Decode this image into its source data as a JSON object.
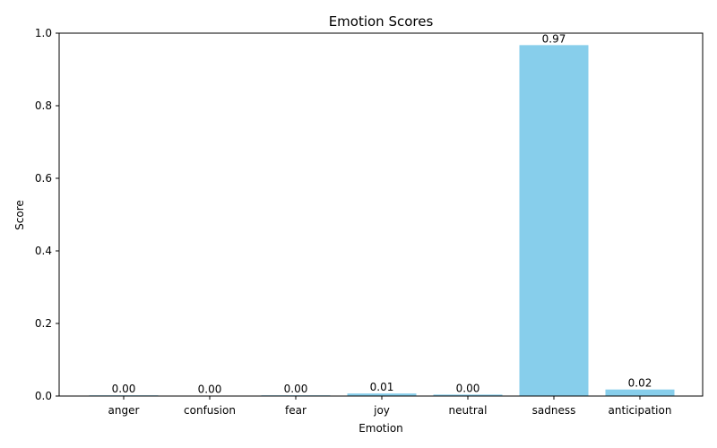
{
  "chart_data": {
    "type": "bar",
    "title": "Emotion Scores",
    "xlabel": "Emotion",
    "ylabel": "Score",
    "categories": [
      "anger",
      "confusion",
      "fear",
      "joy",
      "neutral",
      "sadness",
      "anticipation"
    ],
    "values": [
      0.002,
      0.001,
      0.002,
      0.007,
      0.004,
      0.967,
      0.018
    ],
    "value_labels": [
      "0.00",
      "0.00",
      "0.00",
      "0.01",
      "0.00",
      "0.97",
      "0.02"
    ],
    "ylim": [
      0,
      1.0
    ],
    "yticks": [
      0.0,
      0.2,
      0.4,
      0.6,
      0.8,
      1.0
    ],
    "ytick_labels": [
      "0.0",
      "0.2",
      "0.4",
      "0.6",
      "0.8",
      "1.0"
    ],
    "grid": false,
    "bar_color": "#87ceeb"
  }
}
